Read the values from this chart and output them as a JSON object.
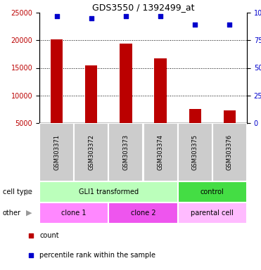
{
  "title": "GDS3550 / 1392499_at",
  "samples": [
    "GSM303371",
    "GSM303372",
    "GSM303373",
    "GSM303374",
    "GSM303375",
    "GSM303376"
  ],
  "bar_values": [
    20200,
    15500,
    19400,
    16700,
    7600,
    7300
  ],
  "percentile_values": [
    97,
    95,
    97,
    97,
    89,
    89
  ],
  "ylim_left": [
    5000,
    25000
  ],
  "ylim_right": [
    0,
    100
  ],
  "yticks_left": [
    5000,
    10000,
    15000,
    20000,
    25000
  ],
  "yticks_right": [
    0,
    25,
    50,
    75,
    100
  ],
  "bar_color": "#bb0000",
  "dot_color": "#0000cc",
  "bar_bottom": 5000,
  "cell_type_groups": [
    {
      "label": "GLI1 transformed",
      "start": 0,
      "end": 4,
      "color": "#bbffbb"
    },
    {
      "label": "control",
      "start": 4,
      "end": 6,
      "color": "#44dd44"
    }
  ],
  "other_groups": [
    {
      "label": "clone 1",
      "start": 0,
      "end": 2,
      "color": "#ff88ff"
    },
    {
      "label": "clone 2",
      "start": 2,
      "end": 4,
      "color": "#ee55ee"
    },
    {
      "label": "parental cell",
      "start": 4,
      "end": 6,
      "color": "#ffbbff"
    }
  ],
  "legend_count_color": "#bb0000",
  "legend_dot_color": "#0000cc",
  "bg_color": "#ffffff",
  "tick_label_area_color": "#cccccc",
  "figsize": [
    3.71,
    3.84
  ],
  "dpi": 100
}
